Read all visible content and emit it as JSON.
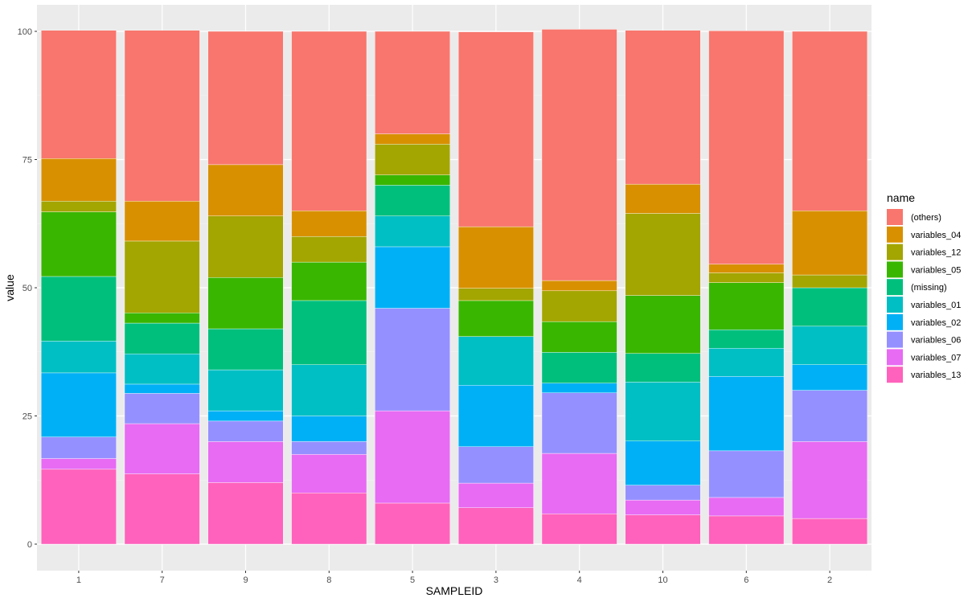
{
  "chart_data": {
    "type": "bar",
    "stacked": true,
    "xlabel": "SAMPLEID",
    "ylabel": "value",
    "ylim": [
      0,
      100
    ],
    "yticks": [
      0,
      25,
      50,
      75,
      100
    ],
    "grid": true,
    "legend_position": "right",
    "legend_title": "name",
    "categories": [
      "1",
      "7",
      "9",
      "8",
      "5",
      "3",
      "4",
      "10",
      "6",
      "2"
    ],
    "series": [
      {
        "name": "(others)",
        "color": "#F8766D",
        "values": [
          25,
          33.3,
          26,
          35,
          20,
          38,
          49,
          30,
          45.5,
          35
        ]
      },
      {
        "name": "variables_04",
        "color": "#D89000",
        "values": [
          8.3,
          7.8,
          10,
          5,
          2,
          12,
          2,
          5.7,
          1.7,
          12.5
        ]
      },
      {
        "name": "variables_12",
        "color": "#A3A500",
        "values": [
          2.1,
          14,
          12,
          5,
          6,
          2.4,
          6,
          16,
          1.9,
          2.5
        ]
      },
      {
        "name": "variables_05",
        "color": "#39B600",
        "values": [
          12.6,
          2,
          10,
          7.5,
          2,
          7,
          6,
          11.3,
          9.2,
          0
        ]
      },
      {
        "name": "(missing)",
        "color": "#00BF7D",
        "values": [
          12.6,
          6,
          8,
          12.5,
          6,
          0,
          6,
          5.6,
          3.6,
          7.5
        ]
      },
      {
        "name": "variables_01",
        "color": "#00BFC4",
        "values": [
          6.2,
          5.9,
          8,
          10,
          6,
          9.5,
          0,
          11.5,
          5.5,
          7.5
        ]
      },
      {
        "name": "variables_02",
        "color": "#00B0F6",
        "values": [
          12.5,
          1.8,
          2,
          5,
          12,
          12,
          1.9,
          8.6,
          14.5,
          5
        ]
      },
      {
        "name": "variables_06",
        "color": "#9590FF",
        "values": [
          4.2,
          5.9,
          4,
          2.5,
          20,
          7.1,
          11.8,
          2.9,
          9.1,
          10
        ]
      },
      {
        "name": "variables_07",
        "color": "#E76BF3",
        "values": [
          2.1,
          9.8,
          8,
          7.5,
          18,
          4.8,
          11.8,
          2.9,
          3.6,
          15
        ]
      },
      {
        "name": "variables_13",
        "color": "#FF62BC",
        "values": [
          14.6,
          13.7,
          12,
          10,
          8,
          7.1,
          5.9,
          5.7,
          5.5,
          5
        ]
      }
    ]
  }
}
